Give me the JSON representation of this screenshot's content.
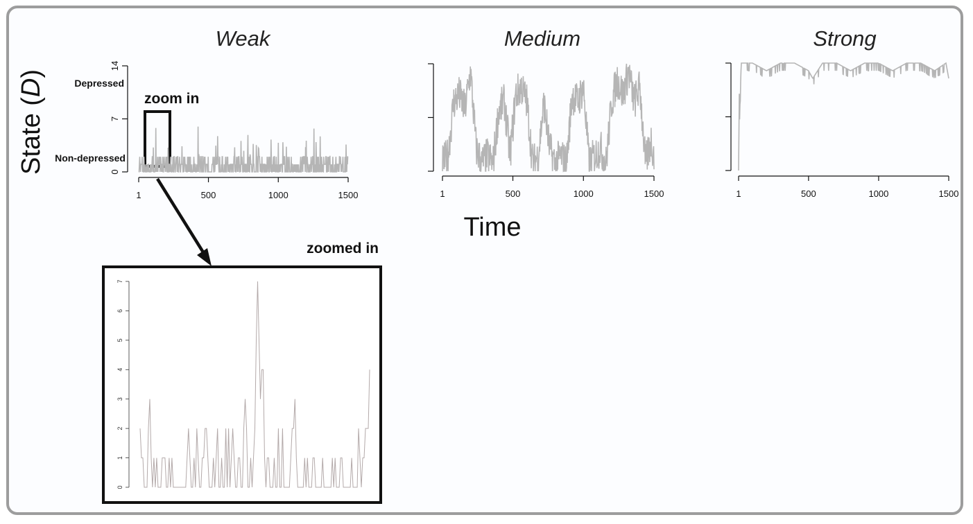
{
  "figure": {
    "y_axis_label": "State (",
    "y_axis_label_var": "D",
    "y_axis_label_close": ")",
    "x_axis_label": "Time",
    "zoom_in_label": "zoom in",
    "zoomed_in_label": "zoomed in",
    "level_labels": {
      "depressed": "Depressed",
      "non_depressed": "Non-depressed"
    }
  },
  "colors": {
    "series": "#b5b5b5",
    "zoom_series": "#b3a9a9",
    "frame": "#9d9d9d",
    "axis": "#111111"
  },
  "chart_data": [
    {
      "type": "line",
      "title": "Weak",
      "xlabel": "Time",
      "ylabel": "State (D)",
      "xlim": [
        1,
        1500
      ],
      "ylim": [
        0,
        14
      ],
      "xticks": [
        1,
        500,
        1000,
        1500
      ],
      "yticks": [
        0,
        7,
        14
      ],
      "description_of_values": "mostly 0-2, occasional spikes up to ~7",
      "sample_times": [
        1,
        40,
        80,
        120,
        160,
        200,
        240,
        280,
        320,
        360,
        400,
        440,
        480,
        520,
        560,
        600,
        640,
        680,
        720,
        760,
        800,
        840,
        880,
        920,
        960,
        1000,
        1040,
        1080,
        1120,
        1160,
        1200,
        1240,
        1280,
        1320,
        1360,
        1400,
        1440,
        1480,
        1500
      ],
      "sample_values": [
        2,
        1,
        1,
        2,
        7,
        2,
        1,
        2,
        1,
        1,
        2,
        1,
        2,
        1,
        5,
        1,
        2,
        1,
        2,
        1,
        2,
        1,
        3,
        1,
        2,
        1,
        2,
        1,
        3,
        1,
        2,
        1,
        2,
        1,
        4,
        1,
        4,
        2,
        2
      ]
    },
    {
      "type": "line",
      "title": "Medium",
      "xlim": [
        1,
        1500
      ],
      "ylim": [
        0,
        14
      ],
      "xticks": [
        1,
        500,
        1000,
        1500
      ],
      "description_of_values": "switching between low (0-3) and high (7-13) regimes",
      "sample_times": [
        1,
        40,
        80,
        120,
        160,
        200,
        240,
        280,
        320,
        360,
        400,
        440,
        480,
        520,
        560,
        600,
        640,
        680,
        720,
        760,
        800,
        840,
        880,
        920,
        960,
        1000,
        1040,
        1080,
        1120,
        1160,
        1200,
        1240,
        1280,
        1320,
        1360,
        1400,
        1440,
        1480,
        1500
      ],
      "sample_values": [
        1,
        2,
        9,
        10,
        8,
        13,
        3,
        1,
        2,
        1,
        8,
        9,
        2,
        10,
        11,
        9,
        1,
        2,
        9,
        3,
        1,
        2,
        1,
        10,
        9,
        11,
        1,
        2,
        3,
        1,
        9,
        12,
        10,
        13,
        9,
        11,
        1,
        4,
        2
      ]
    },
    {
      "type": "line",
      "title": "Strong",
      "xlim": [
        1,
        1500
      ],
      "ylim": [
        0,
        14
      ],
      "xticks": [
        1,
        500,
        1000,
        1500
      ],
      "description_of_values": "rises to 14 almost immediately, stays at 13-14",
      "sample_times": [
        1,
        10,
        20,
        100,
        200,
        300,
        400,
        500,
        530,
        600,
        700,
        800,
        900,
        1000,
        1100,
        1200,
        1300,
        1400,
        1480,
        1500
      ],
      "sample_values": [
        0,
        8,
        14,
        14,
        13,
        14,
        14,
        13,
        12,
        14,
        14,
        13,
        14,
        14,
        13,
        14,
        14,
        13,
        14,
        12
      ]
    },
    {
      "type": "line",
      "title": "zoomed in",
      "ylim": [
        0,
        7
      ],
      "yticks": [
        0,
        1,
        2,
        3,
        4,
        5,
        6,
        7
      ],
      "values": [
        2,
        1,
        1,
        0,
        0,
        0,
        2,
        3,
        1,
        0,
        1,
        0,
        1,
        0,
        0,
        0,
        1,
        1,
        1,
        0,
        0,
        1,
        0,
        1,
        0,
        0,
        0,
        0,
        0,
        0,
        0,
        0,
        0,
        0,
        1,
        2,
        1,
        0,
        0,
        1,
        0,
        2,
        1,
        0,
        0,
        1,
        1,
        2,
        2,
        1,
        0,
        0,
        0,
        1,
        0,
        1,
        2,
        0,
        0,
        1,
        0,
        0,
        2,
        0,
        2,
        0,
        1,
        2,
        1,
        0,
        0,
        1,
        1,
        0,
        0,
        2,
        3,
        2,
        0,
        0,
        1,
        0,
        1,
        2,
        5,
        7,
        5,
        3,
        4,
        4,
        1,
        0,
        1,
        1,
        0,
        0,
        0,
        1,
        0,
        0,
        2,
        0,
        0,
        2,
        0,
        0,
        0,
        0,
        0,
        1,
        2,
        2,
        3,
        1,
        0,
        0,
        0,
        0,
        0,
        1,
        0,
        1,
        0,
        0,
        0,
        1,
        1,
        0,
        0,
        0,
        0,
        0,
        1,
        0,
        0,
        0,
        0,
        0,
        0,
        1,
        0,
        1,
        0,
        0,
        0,
        1,
        1,
        0,
        0,
        0,
        0,
        0,
        0,
        1,
        0,
        0,
        0,
        0,
        2,
        1,
        0,
        1,
        1,
        2,
        2,
        2,
        4
      ]
    }
  ]
}
